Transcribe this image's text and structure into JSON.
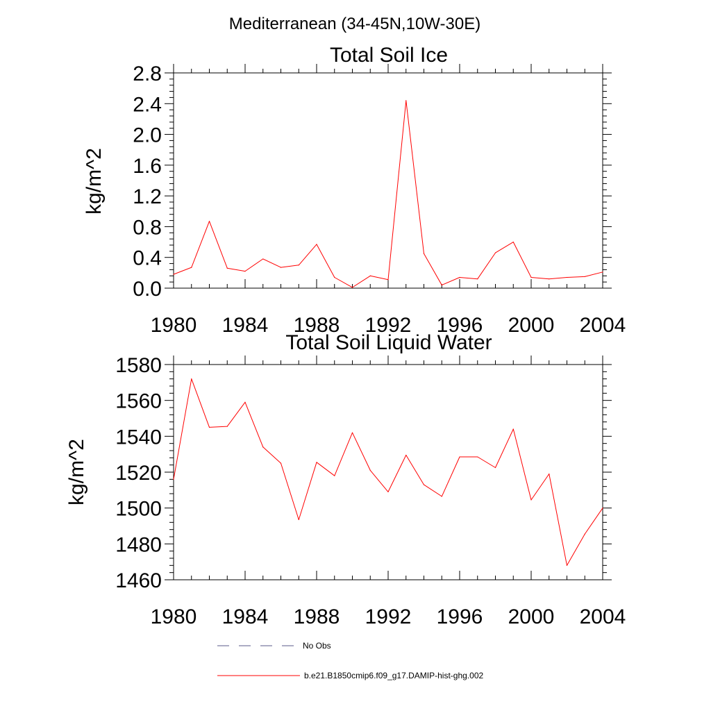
{
  "figure": {
    "title": "Mediterranean (34-45N,10W-30E)"
  },
  "chart_data": [
    {
      "type": "line",
      "title": "Total Soil Ice",
      "xlabel": "",
      "ylabel": "kg/m^2",
      "xlim": [
        1980,
        2004
      ],
      "ylim": [
        0.0,
        2.8
      ],
      "x_ticks": [
        "1980",
        "1984",
        "1988",
        "1992",
        "1996",
        "2000",
        "2004"
      ],
      "y_ticks": [
        "0.0",
        "0.4",
        "0.8",
        "1.2",
        "1.6",
        "2.0",
        "2.4",
        "2.8"
      ],
      "grid": false,
      "x": [
        1980,
        1981,
        1982,
        1983,
        1984,
        1985,
        1986,
        1987,
        1988,
        1989,
        1990,
        1991,
        1992,
        1993,
        1994,
        1995,
        1996,
        1997,
        1998,
        1999,
        2000,
        2001,
        2002,
        2003,
        2004
      ],
      "series": [
        {
          "name": "b.e21.B1850cmip6.f09_g17.DAMIP-hist-ghg.002",
          "color": "#ff0000",
          "values": [
            0.18,
            0.27,
            0.87,
            0.26,
            0.22,
            0.38,
            0.27,
            0.3,
            0.57,
            0.14,
            0.01,
            0.16,
            0.11,
            2.44,
            0.45,
            0.04,
            0.14,
            0.12,
            0.46,
            0.6,
            0.14,
            0.12,
            0.14,
            0.15,
            0.21
          ]
        }
      ]
    },
    {
      "type": "line",
      "title": "Total Soil Liquid Water",
      "xlabel": "",
      "ylabel": "kg/m^2",
      "xlim": [
        1980,
        2004
      ],
      "ylim": [
        1460,
        1580
      ],
      "x_ticks": [
        "1980",
        "1984",
        "1988",
        "1992",
        "1996",
        "2000",
        "2004"
      ],
      "y_ticks": [
        "1460",
        "1480",
        "1500",
        "1520",
        "1540",
        "1560",
        "1580"
      ],
      "grid": false,
      "x": [
        1980,
        1981,
        1982,
        1983,
        1984,
        1985,
        1986,
        1987,
        1988,
        1989,
        1990,
        1991,
        1992,
        1993,
        1994,
        1995,
        1996,
        1997,
        1998,
        1999,
        2000,
        2001,
        2002,
        2003,
        2004
      ],
      "series": [
        {
          "name": "b.e21.B1850cmip6.f09_g17.DAMIP-hist-ghg.002",
          "color": "#ff0000",
          "values": [
            1516,
            1572,
            1545,
            1545.5,
            1559,
            1534,
            1525,
            1493.5,
            1525.5,
            1518,
            1542,
            1521,
            1509,
            1529.5,
            1513,
            1506.5,
            1528.5,
            1528.5,
            1522.5,
            1544,
            1504.5,
            1519,
            1468,
            1485.5,
            1500
          ]
        }
      ]
    }
  ],
  "legend": {
    "placement": "bottom",
    "items": [
      {
        "label": "No Obs",
        "style": "dashed",
        "color": "#5a5a8a"
      },
      {
        "label": "b.e21.B1850cmip6.f09_g17.DAMIP-hist-ghg.002",
        "style": "solid",
        "color": "#ff0000"
      }
    ]
  }
}
